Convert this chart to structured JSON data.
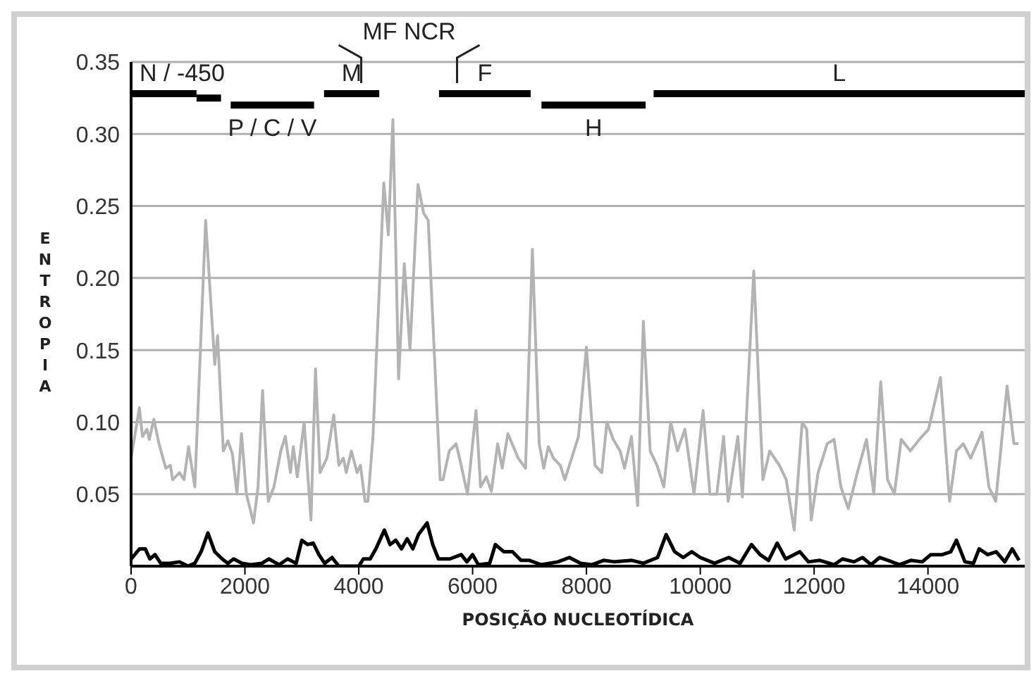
{
  "chart_data": {
    "type": "line",
    "xlabel": "POSIÇÃO NUCLEOTÍDICA",
    "ylabel": "ENTROPIA",
    "xlim": [
      0,
      15700
    ],
    "xticks": [
      0,
      2000,
      4000,
      6000,
      8000,
      10000,
      12000,
      14000
    ],
    "ylim": [
      0,
      0.35
    ],
    "yticks": [
      {
        "value": 0,
        "label": null
      },
      0.05,
      {
        "value": 0.1,
        "label": "0.10"
      },
      0.15,
      {
        "value": 0.2,
        "label": "0.20"
      },
      0.25,
      {
        "value": 0.3,
        "label": "0.30"
      },
      0.35
    ],
    "grid": "y",
    "line_style": "solid",
    "series": [
      {
        "color": "#b3b3b3",
        "x": [
          0,
          146,
          200,
          280,
          320,
          400,
          490,
          610,
          690,
          730,
          850,
          930,
          1010,
          1120,
          1310,
          1470,
          1520,
          1620,
          1700,
          1780,
          1860,
          1940,
          2025,
          2090,
          2150,
          2230,
          2310,
          2410,
          2510,
          2630,
          2710,
          2800,
          2850,
          2920,
          3040,
          3160,
          3240,
          3320,
          3440,
          3560,
          3650,
          3730,
          3780,
          3870,
          3970,
          4030,
          4110,
          4160,
          4250,
          4440,
          4520,
          4600,
          4700,
          4800,
          4900,
          5040,
          5140,
          5220,
          5430,
          5480,
          5590,
          5710,
          5770,
          5910,
          6060,
          6140,
          6240,
          6330,
          6440,
          6520,
          6620,
          6800,
          6930,
          7050,
          7170,
          7250,
          7330,
          7420,
          7540,
          7620,
          7740,
          7860,
          8000,
          8150,
          8270,
          8360,
          8470,
          8590,
          8670,
          8790,
          8900,
          9000,
          9120,
          9240,
          9360,
          9480,
          9600,
          9730,
          9890,
          10050,
          10170,
          10290,
          10410,
          10490,
          10660,
          10740,
          10940,
          11100,
          11220,
          11390,
          11510,
          11650,
          11790,
          11870,
          11950,
          12070,
          12230,
          12350,
          12470,
          12600,
          12760,
          12920,
          13050,
          13170,
          13290,
          13410,
          13530,
          13690,
          13850,
          14010,
          14220,
          14380,
          14500,
          14620,
          14750,
          14950,
          15070,
          15190,
          15390,
          15510,
          15590
        ],
        "values": [
          0.075,
          0.11,
          0.09,
          0.095,
          0.088,
          0.102,
          0.085,
          0.068,
          0.07,
          0.06,
          0.065,
          0.06,
          0.083,
          0.055,
          0.24,
          0.14,
          0.16,
          0.08,
          0.087,
          0.078,
          0.05,
          0.092,
          0.05,
          0.04,
          0.03,
          0.055,
          0.122,
          0.045,
          0.055,
          0.08,
          0.09,
          0.065,
          0.083,
          0.062,
          0.1,
          0.032,
          0.137,
          0.065,
          0.075,
          0.105,
          0.07,
          0.075,
          0.065,
          0.08,
          0.065,
          0.07,
          0.045,
          0.045,
          0.09,
          0.266,
          0.23,
          0.31,
          0.13,
          0.21,
          0.15,
          0.265,
          0.245,
          0.24,
          0.06,
          0.06,
          0.08,
          0.085,
          0.075,
          0.05,
          0.108,
          0.055,
          0.062,
          0.052,
          0.085,
          0.068,
          0.092,
          0.075,
          0.068,
          0.22,
          0.085,
          0.068,
          0.083,
          0.075,
          0.07,
          0.06,
          0.075,
          0.09,
          0.152,
          0.07,
          0.065,
          0.1,
          0.088,
          0.08,
          0.068,
          0.09,
          0.042,
          0.17,
          0.08,
          0.07,
          0.055,
          0.1,
          0.08,
          0.095,
          0.05,
          0.108,
          0.05,
          0.05,
          0.09,
          0.045,
          0.09,
          0.048,
          0.205,
          0.06,
          0.08,
          0.07,
          0.06,
          0.025,
          0.1,
          0.095,
          0.032,
          0.065,
          0.085,
          0.088,
          0.055,
          0.04,
          0.065,
          0.088,
          0.05,
          0.128,
          0.06,
          0.05,
          0.088,
          0.08,
          0.088,
          0.095,
          0.131,
          0.045,
          0.08,
          0.085,
          0.075,
          0.093,
          0.055,
          0.045,
          0.125,
          0.085,
          0.085
        ]
      },
      {
        "color": "#000000",
        "x": [
          0,
          150,
          250,
          330,
          420,
          520,
          680,
          850,
          1000,
          1120,
          1230,
          1350,
          1470,
          1600,
          1700,
          1800,
          1950,
          2100,
          2300,
          2420,
          2600,
          2750,
          2900,
          3000,
          3100,
          3200,
          3300,
          3400,
          3530,
          3650,
          4000,
          4080,
          4200,
          4300,
          4450,
          4550,
          4650,
          4750,
          4850,
          4950,
          5050,
          5200,
          5300,
          5400,
          5600,
          5800,
          5900,
          6000,
          6100,
          6300,
          6400,
          6550,
          6700,
          6850,
          7000,
          7200,
          7500,
          7700,
          7900,
          8100,
          8300,
          8500,
          8800,
          9000,
          9250,
          9400,
          9550,
          9700,
          9850,
          10000,
          10250,
          10500,
          10700,
          10900,
          11050,
          11200,
          11350,
          11500,
          11750,
          11900,
          12100,
          12350,
          12500,
          12700,
          12850,
          13000,
          13150,
          13300,
          13500,
          13700,
          13900,
          14050,
          14250,
          14400,
          14500,
          14650,
          14800,
          14900,
          15050,
          15200,
          15350,
          15480,
          15600
        ],
        "values": [
          0.005,
          0.012,
          0.012,
          0.005,
          0.008,
          0.002,
          0.002,
          0.003,
          0,
          0.002,
          0.01,
          0.023,
          0.01,
          0.005,
          0.002,
          0.005,
          0.002,
          0.001,
          0.002,
          0.005,
          0.001,
          0.005,
          0.002,
          0.018,
          0.015,
          0.016,
          0.008,
          0.002,
          0.006,
          0,
          0,
          0.005,
          0.005,
          0.012,
          0.025,
          0.015,
          0.018,
          0.012,
          0.019,
          0.012,
          0.022,
          0.03,
          0.015,
          0.005,
          0.005,
          0.008,
          0.003,
          0.008,
          0.001,
          0.002,
          0.015,
          0.01,
          0.01,
          0.004,
          0.004,
          0.001,
          0.003,
          0.006,
          0.002,
          0.001,
          0.004,
          0.003,
          0.004,
          0.002,
          0.006,
          0.022,
          0.01,
          0.006,
          0.01,
          0.006,
          0.002,
          0.006,
          0.002,
          0.015,
          0.008,
          0.004,
          0.016,
          0.005,
          0.01,
          0.003,
          0.004,
          0.001,
          0.005,
          0.003,
          0.006,
          0.001,
          0.006,
          0.004,
          0.001,
          0.004,
          0.003,
          0.008,
          0.008,
          0.01,
          0.018,
          0.003,
          0.002,
          0.012,
          0.008,
          0.01,
          0.003,
          0.012,
          0.004
        ]
      },
      {
        "name": "N / -450",
        "color": "#000000",
        "x": [
          0,
          1150
        ],
        "values": [
          0.328,
          0.328
        ]
      },
      {
        "color": "#000000",
        "x": [
          1150,
          1580
        ],
        "values": [
          0.325,
          0.325
        ]
      },
      {
        "name": "P / C / V",
        "color": "#000000",
        "x": [
          1750,
          3215
        ],
        "values": [
          0.32,
          0.32
        ]
      },
      {
        "name": "M",
        "color": "#000000",
        "x": [
          3390,
          4360
        ],
        "values": [
          0.328,
          0.328
        ]
      },
      {
        "name": "F",
        "color": "#000000",
        "x": [
          5410,
          7020
        ],
        "values": [
          0.328,
          0.328
        ]
      },
      {
        "name": "H",
        "color": "#000000",
        "x": [
          7210,
          9040
        ],
        "values": [
          0.32,
          0.32
        ]
      },
      {
        "name": "L",
        "color": "#000000",
        "x": [
          9180,
          15700
        ],
        "values": [
          0.328,
          0.328
        ]
      }
    ],
    "annotations": [
      "MF NCR"
    ]
  }
}
